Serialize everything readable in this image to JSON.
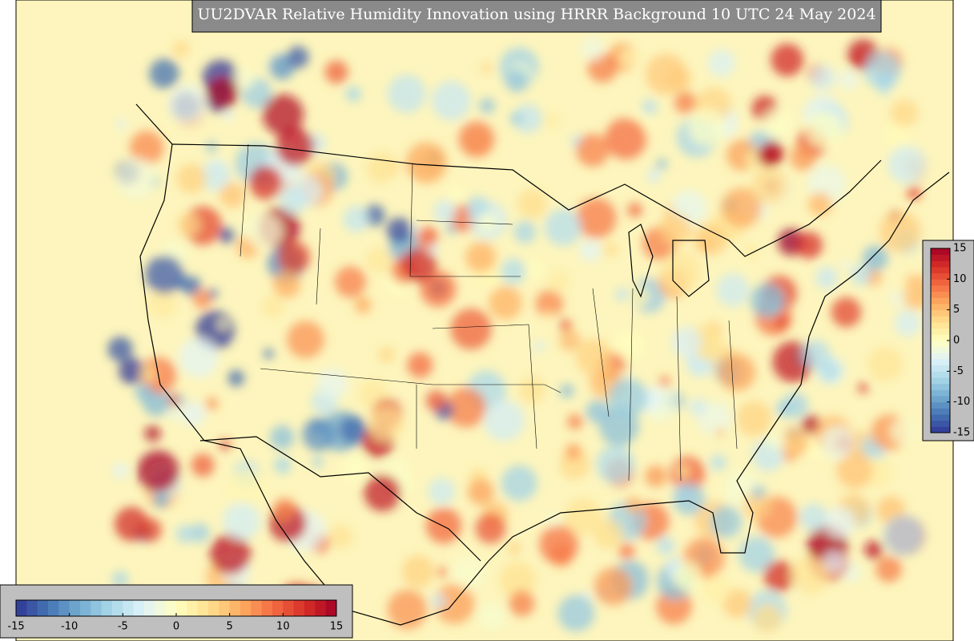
{
  "title": "UU2DVAR Relative Humidity Innovation using HRRR Background 10 UTC 24 May 2024",
  "colormap": [
    "#313695",
    "#4575b4",
    "#74add1",
    "#abd9e9",
    "#e0f3f8",
    "#ffffbf",
    "#fee090",
    "#fdae61",
    "#f46d43",
    "#d73027",
    "#a50026"
  ],
  "colorbars": [
    {
      "orientation": "horizontal",
      "lim": [
        -15,
        15
      ],
      "ticks": [
        -15,
        -10,
        -5,
        0,
        5,
        10,
        15
      ]
    },
    {
      "orientation": "vertical",
      "lim": [
        -15,
        15
      ],
      "ticks": [
        -15,
        -10,
        -5,
        0,
        5,
        10,
        15
      ]
    }
  ]
}
